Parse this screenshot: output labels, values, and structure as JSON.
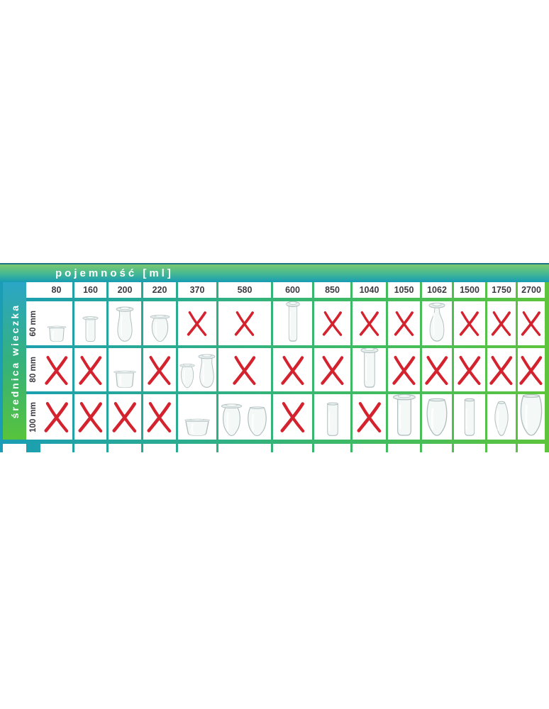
{
  "header": {
    "title": "pojemność [ml]"
  },
  "sidebar": {
    "label": "średnica wieczka"
  },
  "colors": {
    "teal": "#1a9db5",
    "green": "#5ec43c",
    "x_red": "#d4232e",
    "glass_outline": "#b2bfbf"
  },
  "chart_data": {
    "type": "table",
    "title": "pojemność [ml]",
    "row_axis_label": "średnica wieczka",
    "columns": [
      "80",
      "160",
      "200",
      "220",
      "370",
      "580",
      "600",
      "850",
      "1040",
      "1050",
      "1062",
      "1500",
      "1750",
      "2700"
    ],
    "rows": [
      {
        "label": "60 mm",
        "cells": [
          {
            "type": "jars",
            "jars": [
              {
                "shape": "squat-lid",
                "w": 30,
                "h": 24
              }
            ]
          },
          {
            "type": "jars",
            "jars": [
              {
                "shape": "straight-lid",
                "w": 25,
                "h": 38
              }
            ]
          },
          {
            "type": "jars",
            "jars": [
              {
                "shape": "hourglass-lid",
                "w": 28,
                "h": 52
              }
            ]
          },
          {
            "type": "jars",
            "jars": [
              {
                "shape": "tulip-lid",
                "w": 31,
                "h": 40
              }
            ]
          },
          {
            "type": "x"
          },
          {
            "type": "x"
          },
          {
            "type": "jars",
            "jars": [
              {
                "shape": "cylinder-lid",
                "w": 22,
                "h": 60
              }
            ]
          },
          {
            "type": "x"
          },
          {
            "type": "x"
          },
          {
            "type": "x"
          },
          {
            "type": "jars",
            "jars": [
              {
                "shape": "carafe-lid",
                "w": 26,
                "h": 58
              }
            ]
          },
          {
            "type": "x"
          },
          {
            "type": "x"
          },
          {
            "type": "x"
          }
        ]
      },
      {
        "label": "80 mm",
        "cells": [
          {
            "type": "x"
          },
          {
            "type": "x"
          },
          {
            "type": "jars",
            "jars": [
              {
                "shape": "squat-lid",
                "w": 36,
                "h": 26
              }
            ]
          },
          {
            "type": "x"
          },
          {
            "type": "jars",
            "jars": [
              {
                "shape": "tulip-lid",
                "w": 24,
                "h": 36
              },
              {
                "shape": "hourglass-lid",
                "w": 27,
                "h": 50
              }
            ]
          },
          {
            "type": "x"
          },
          {
            "type": "x"
          },
          {
            "type": "x"
          },
          {
            "type": "jars",
            "jars": [
              {
                "shape": "cylinder-lid",
                "w": 28,
                "h": 60
              }
            ]
          },
          {
            "type": "x"
          },
          {
            "type": "x"
          },
          {
            "type": "x"
          },
          {
            "type": "x"
          },
          {
            "type": "x"
          }
        ]
      },
      {
        "label": "100 mm",
        "cells": [
          {
            "type": "x"
          },
          {
            "type": "x"
          },
          {
            "type": "x"
          },
          {
            "type": "x"
          },
          {
            "type": "jars",
            "jars": [
              {
                "shape": "bowl-lid",
                "w": 40,
                "h": 26
              }
            ]
          },
          {
            "type": "jars",
            "jars": [
              {
                "shape": "tulip-lid",
                "w": 33,
                "h": 48
              },
              {
                "shape": "tulip",
                "w": 35,
                "h": 44
              }
            ]
          },
          {
            "type": "x"
          },
          {
            "type": "jars",
            "jars": [
              {
                "shape": "cylinder",
                "w": 28,
                "h": 50
              }
            ]
          },
          {
            "type": "x"
          },
          {
            "type": "jars",
            "jars": [
              {
                "shape": "cylinder-lid",
                "w": 36,
                "h": 62
              }
            ]
          },
          {
            "type": "jars",
            "jars": [
              {
                "shape": "tulip",
                "w": 38,
                "h": 56
              }
            ]
          },
          {
            "type": "jars",
            "jars": [
              {
                "shape": "slim",
                "w": 28,
                "h": 56
              }
            ]
          },
          {
            "type": "jars",
            "jars": [
              {
                "shape": "teardrop",
                "w": 28,
                "h": 52
              }
            ]
          },
          {
            "type": "jars",
            "jars": [
              {
                "shape": "tulip",
                "w": 40,
                "h": 62
              }
            ]
          }
        ]
      }
    ],
    "compatibility": {
      "60 mm": [
        true,
        true,
        true,
        true,
        false,
        false,
        true,
        false,
        false,
        false,
        true,
        false,
        false,
        false
      ],
      "80 mm": [
        false,
        false,
        true,
        false,
        true,
        false,
        false,
        false,
        true,
        false,
        false,
        false,
        false,
        false
      ],
      "100 mm": [
        false,
        false,
        false,
        false,
        true,
        true,
        false,
        true,
        false,
        true,
        true,
        true,
        true,
        true
      ]
    }
  }
}
